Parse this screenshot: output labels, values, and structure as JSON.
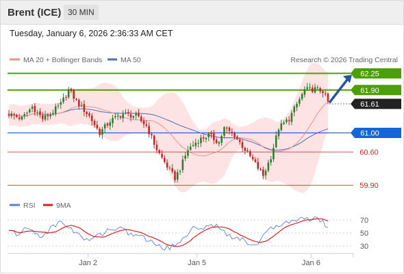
{
  "header": {
    "title": "Brent (ICE)",
    "timeframe": "30 MIN",
    "datetime": "Tuesday, January 6, 2026 2:36:33 AM CET"
  },
  "legend": {
    "ma20_bb": "MA 20 + Bollinger Bands",
    "ma50": "MA 50",
    "credit": "Research © 2026 Trading Central"
  },
  "rsi_legend": {
    "rsi": "RSI",
    "ma9": "9MA"
  },
  "colors": {
    "green": "#4c9e0b",
    "dark": "#222222",
    "blue_level": "#1565d8",
    "red_level": "#c62828",
    "bb_fill": "#fde3e3",
    "ma20": "#ef8f8f",
    "ma50": "#4a6fb5",
    "candle_green": "#2e7d32",
    "candle_red": "#c62828",
    "arrow": "#2255a4",
    "rsi_line": "#5b7fd6",
    "rsi_ma": "#d62020"
  },
  "chart_data": [
    {
      "type": "candlestick",
      "title": "Brent (ICE)",
      "timeframe": "30 MIN",
      "y_axis_side": "right",
      "x_ticks": [
        "Jan 2",
        "Jan 5",
        "Jan 6"
      ],
      "price_levels": [
        {
          "value": 62.25,
          "label": "62.25",
          "style": "green-box",
          "kind": "target"
        },
        {
          "value": 61.9,
          "label": "61.90",
          "style": "green-box",
          "kind": "resistance"
        },
        {
          "value": 61.61,
          "label": "61.61",
          "style": "dark-box",
          "kind": "last-price"
        },
        {
          "value": 61.0,
          "label": "61.00",
          "style": "blue-box",
          "kind": "pivot"
        },
        {
          "value": 60.6,
          "label": "60.60",
          "style": "red-text",
          "kind": "support"
        },
        {
          "value": 59.9,
          "label": "59.90",
          "style": "red-text",
          "kind": "support"
        }
      ],
      "series": [
        {
          "name": "MA 20 + Bollinger Bands"
        },
        {
          "name": "MA 50"
        }
      ],
      "close_path": [
        [
          0,
          61.4
        ],
        [
          5,
          61.3
        ],
        [
          9,
          61.55
        ],
        [
          13,
          61.3
        ],
        [
          16,
          61.4
        ],
        [
          20,
          61.6
        ],
        [
          23,
          61.9
        ],
        [
          27,
          61.6
        ],
        [
          31,
          61.35
        ],
        [
          35,
          61.0
        ],
        [
          39,
          61.25
        ],
        [
          44,
          61.4
        ],
        [
          49,
          61.35
        ],
        [
          53,
          61.15
        ],
        [
          57,
          60.65
        ],
        [
          61,
          60.3
        ],
        [
          64,
          60.05
        ],
        [
          66,
          60.25
        ],
        [
          69,
          60.65
        ],
        [
          73,
          60.85
        ],
        [
          77,
          60.95
        ],
        [
          81,
          60.8
        ],
        [
          83,
          61.1
        ],
        [
          87,
          60.95
        ],
        [
          91,
          60.65
        ],
        [
          95,
          60.35
        ],
        [
          98,
          60.1
        ],
        [
          101,
          60.5
        ],
        [
          104,
          61.1
        ],
        [
          108,
          61.3
        ],
        [
          111,
          61.6
        ],
        [
          114,
          61.9
        ],
        [
          118,
          61.92
        ],
        [
          121,
          61.88
        ],
        [
          123,
          61.65
        ]
      ],
      "annotations": [
        {
          "type": "arrow",
          "from_value": 61.62,
          "to_value": 62.25
        }
      ]
    },
    {
      "type": "line",
      "title": "",
      "yticks": [
        70,
        50,
        30
      ],
      "series": [
        {
          "name": "RSI"
        },
        {
          "name": "9MA"
        }
      ],
      "rsi_path": [
        [
          0,
          52
        ],
        [
          4,
          48
        ],
        [
          7,
          58
        ],
        [
          10,
          50
        ],
        [
          13,
          45
        ],
        [
          17,
          60
        ],
        [
          20,
          67
        ],
        [
          23,
          60
        ],
        [
          26,
          50
        ],
        [
          30,
          38
        ],
        [
          34,
          45
        ],
        [
          38,
          55
        ],
        [
          42,
          58
        ],
        [
          46,
          50
        ],
        [
          50,
          46
        ],
        [
          54,
          38
        ],
        [
          58,
          30
        ],
        [
          62,
          26
        ],
        [
          66,
          38
        ],
        [
          70,
          55
        ],
        [
          74,
          60
        ],
        [
          77,
          57
        ],
        [
          80,
          65
        ],
        [
          83,
          52
        ],
        [
          86,
          45
        ],
        [
          89,
          40
        ],
        [
          92,
          36
        ],
        [
          95,
          32
        ],
        [
          98,
          45
        ],
        [
          101,
          55
        ],
        [
          104,
          62
        ],
        [
          107,
          68
        ],
        [
          110,
          72
        ],
        [
          113,
          70
        ],
        [
          117,
          73
        ],
        [
          120,
          71
        ],
        [
          123,
          58
        ]
      ]
    }
  ]
}
